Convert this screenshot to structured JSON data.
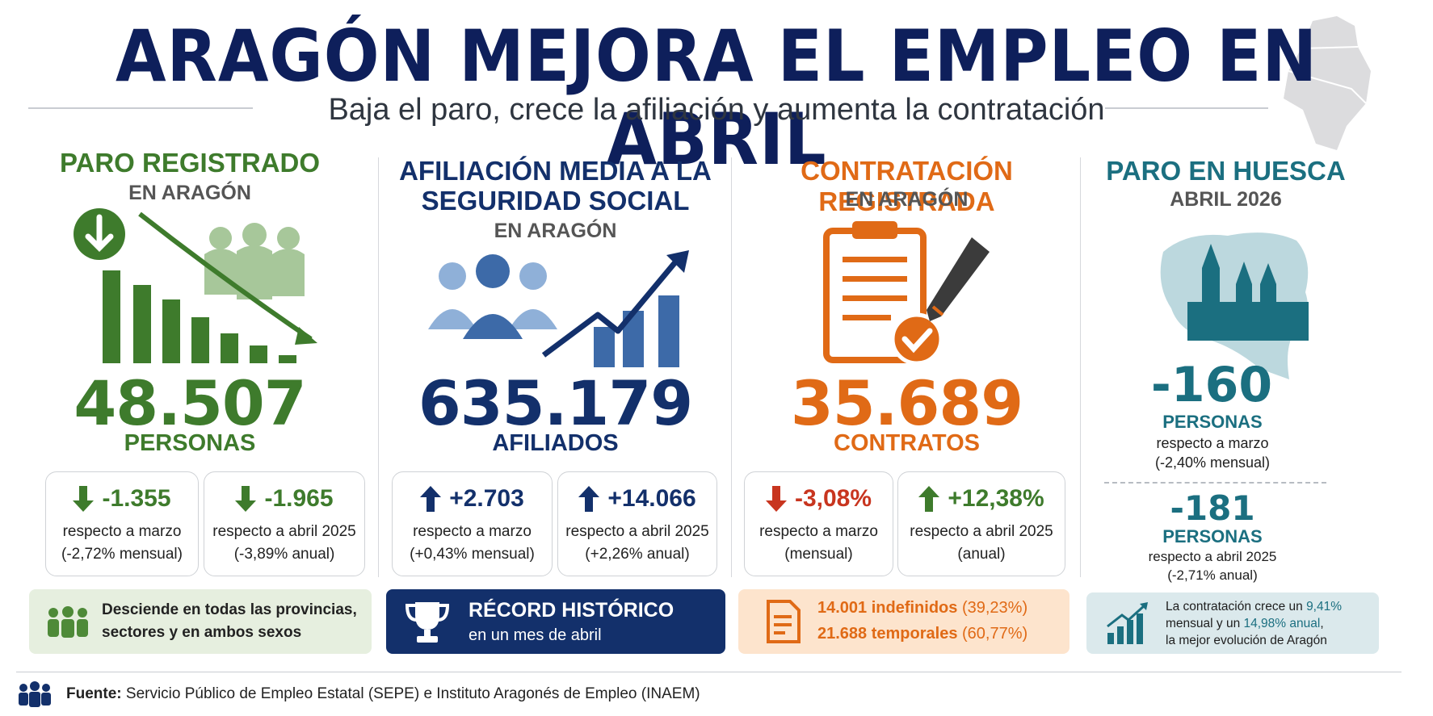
{
  "header": {
    "title": "ARAGÓN MEJORA EL EMPLEO EN ABRIL",
    "subtitle": "Baja el paro, crece la afiliación y aumenta la contratación"
  },
  "paro": {
    "title": "PARO REGISTRADO",
    "region": "EN ARAGÓN",
    "value": "48.507",
    "unit": "PERSONAS",
    "monthly": {
      "value": "-1.355",
      "line1": "respecto a marzo",
      "line2": "(-2,72% mensual)"
    },
    "yearly": {
      "value": "-1.965",
      "line1": "respecto a abril 2025",
      "line2": "(-3,89% anual)"
    },
    "note": "Desciende en todas las provincias, sectores y en ambos sexos"
  },
  "afiliacion": {
    "title_line1": "AFILIACIÓN MEDIA A LA",
    "title_line2": "SEGURIDAD SOCIAL",
    "region": "EN ARAGÓN",
    "value": "635.179",
    "unit": "AFILIADOS",
    "monthly": {
      "value": "+2.703",
      "line1": "respecto a marzo",
      "line2": "(+0,43% mensual)"
    },
    "yearly": {
      "value": "+14.066",
      "line1": "respecto a abril 2025",
      "line2": "(+2,26% anual)"
    },
    "record_title": "RÉCORD HISTÓRICO",
    "record_sub": "en un mes de abril"
  },
  "contratacion": {
    "title": "CONTRATACIÓN REGISTRADA",
    "region": "EN ARAGÓN",
    "value": "35.689",
    "unit": "CONTRATOS",
    "monthly": {
      "value": "-3,08%",
      "line1": "respecto a marzo",
      "line2": "(mensual)"
    },
    "yearly": {
      "value": "+12,38%",
      "line1": "respecto a abril 2025",
      "line2": "(anual)"
    },
    "indefinidos": "14.001 indefinidos",
    "indefinidos_pct": "(39,23%)",
    "temporales": "21.688 temporales",
    "temporales_pct": "(60,77%)"
  },
  "huesca": {
    "title": "PARO EN HUESCA",
    "period": "ABRIL 2026",
    "monthly_value": "-160",
    "monthly_unit": "PERSONAS",
    "monthly_line1": "respecto a marzo",
    "monthly_line2": "(-2,40% mensual)",
    "yearly_value": "-181",
    "yearly_unit": "PERSONAS",
    "yearly_line1": "respecto a abril 2025",
    "yearly_line2": "(-2,71% anual)",
    "note_a": "La contratación crece un ",
    "note_pct1": "9,41%",
    "note_b": "mensual y un ",
    "note_pct2": "14,98% anual",
    "note_c": ",",
    "note_d": "la mejor evolución de Aragón"
  },
  "footer": {
    "label": "Fuente:",
    "text": "Servicio Público de Empleo Estatal (SEPE) e Instituto Aragonés de Empleo (INAEM)"
  },
  "colors": {
    "navy": "#13306b",
    "green": "#3e7b2c",
    "orange": "#e06a16",
    "teal": "#1b6f80",
    "red": "#c8351f"
  }
}
